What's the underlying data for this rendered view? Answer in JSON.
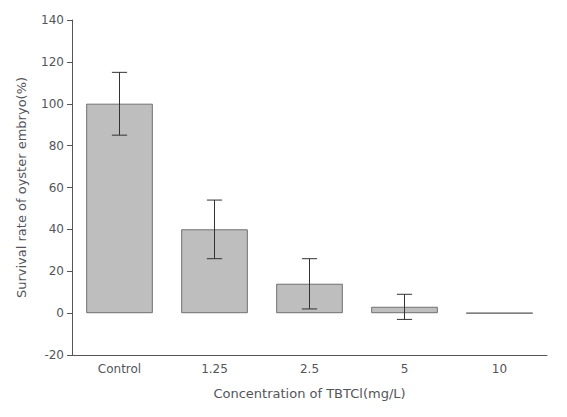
{
  "chart_data": {
    "type": "bar",
    "categories": [
      "Control",
      "1.25",
      "2.5",
      "5",
      "10"
    ],
    "values": [
      100,
      40,
      14,
      3,
      0
    ],
    "errors": [
      15,
      14,
      12,
      6,
      0
    ],
    "color": "#bebebe",
    "xlabel": "Concentration of TBTCl(mg/L)",
    "ylabel": "Survival rate of oyster embryo(%)",
    "ylim": [
      -20,
      140
    ],
    "yticks": [
      -20,
      0,
      20,
      40,
      60,
      80,
      100,
      120,
      140
    ],
    "grid": false
  }
}
